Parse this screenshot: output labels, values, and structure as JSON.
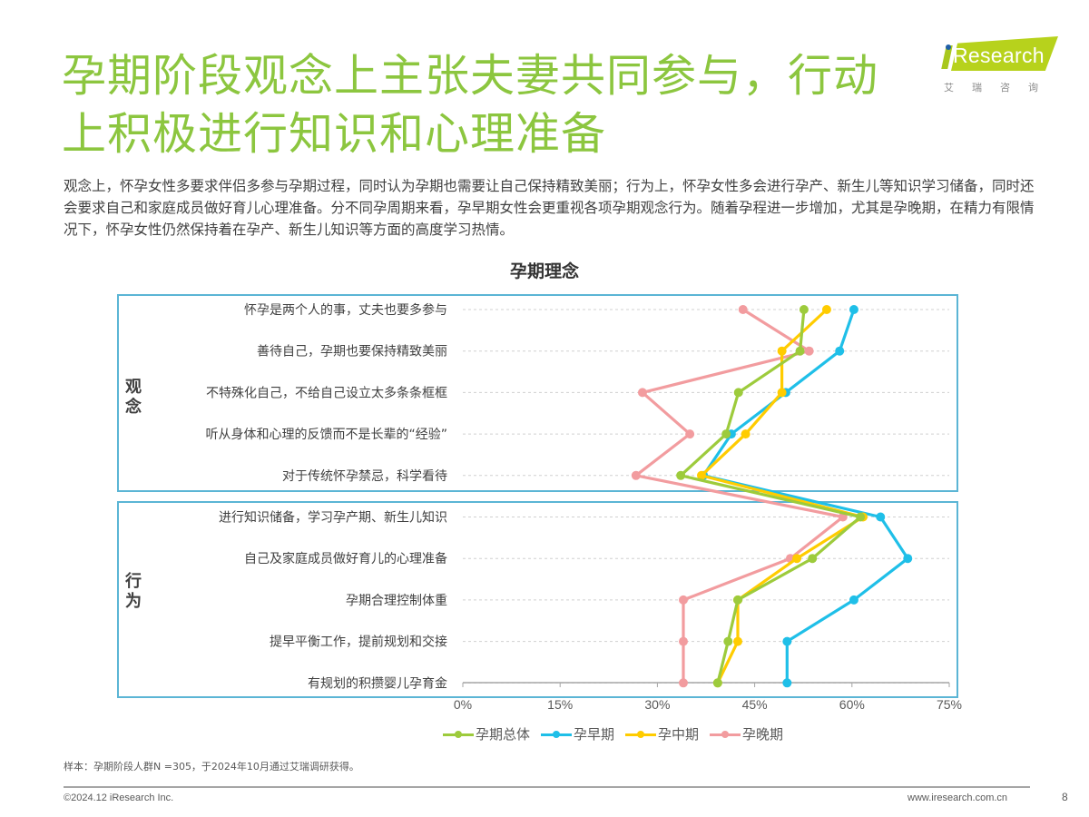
{
  "header": {
    "title_line1": "孕期阶段观念上主张夫妻共同参与，行动",
    "title_line2": "上积极进行知识和心理准备",
    "logo_brand": "Research",
    "logo_cn": "艾瑞咨询"
  },
  "description": "观念上，怀孕女性多要求伴侣多参与孕期过程，同时认为孕期也需要让自己保持精致美丽；行为上，怀孕女性多会进行孕产、新生儿等知识学习储备，同时还会要求自己和家庭成员做好育儿心理准备。分不同孕周期来看，孕早期女性会更重视各项孕期观念行为。随着孕程进一步增加，尤其是孕晚期，在精力有限情况下，怀孕女性仍然保持着在孕产、新生儿知识等方面的高度学习热情。",
  "footer": {
    "footnote": "样本：孕期阶段人群N =305，于2024年10月通过艾瑞调研获得。",
    "copyright": "©2024.12 iResearch Inc.",
    "website": "www.iresearch.com.cn",
    "page": "8"
  },
  "chart_data": {
    "type": "line",
    "orientation": "horizontal-categories",
    "title": "孕期理念",
    "xlabel": "",
    "ylabel": "",
    "xlim": [
      0,
      75
    ],
    "x_ticks": [
      "0%",
      "15%",
      "30%",
      "45%",
      "60%",
      "75%"
    ],
    "grid": "dashed horizontal per category",
    "legend_position": "bottom",
    "groups": [
      {
        "label": "观念",
        "range": [
          0,
          4
        ]
      },
      {
        "label": "行为",
        "range": [
          5,
          9
        ]
      }
    ],
    "categories": [
      "怀孕是两个人的事，丈夫也要多参与",
      "善待自己，孕期也要保持精致美丽",
      "不特殊化自己，不给自己设立太多条条框框",
      "听从身体和心理的反馈而不是长辈的“经验”",
      "对于传统怀孕禁忌，科学看待",
      "进行知识储备，学习孕产期、新生儿知识",
      "自己及家庭成员做好育儿的心理准备",
      "孕期合理控制体重",
      "提早平衡工作，提前规划和交接",
      "有规划的积攒婴儿孕育金"
    ],
    "series": [
      {
        "name": "孕期总体",
        "color": "#9dcb3c",
        "values": [
          52.6,
          52.0,
          42.5,
          40.6,
          33.6,
          61.3,
          53.9,
          42.4,
          40.9,
          39.3
        ]
      },
      {
        "name": "孕早期",
        "color": "#1fbfe8",
        "values": [
          60.3,
          58.1,
          49.8,
          41.4,
          37.1,
          64.4,
          68.6,
          60.3,
          50.0,
          50.0
        ]
      },
      {
        "name": "孕中期",
        "color": "#ffcc00",
        "values": [
          56.1,
          49.2,
          49.2,
          43.6,
          36.8,
          61.7,
          51.5,
          42.4,
          42.4,
          39.3
        ]
      },
      {
        "name": "孕晚期",
        "color": "#f29c9f",
        "values": [
          43.2,
          53.4,
          27.7,
          35.0,
          26.7,
          58.6,
          50.5,
          34.0,
          34.0,
          34.0
        ]
      }
    ]
  },
  "colors": {
    "title_green": "#8cc63f",
    "frame_blue": "#5bb5d5"
  }
}
